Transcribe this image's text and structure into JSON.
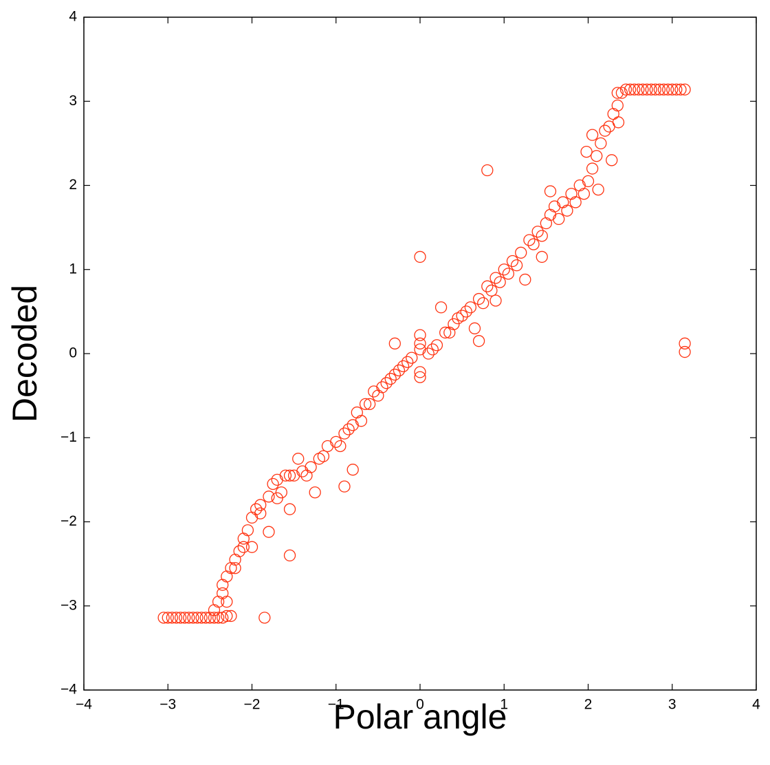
{
  "chart_data": {
    "type": "scatter",
    "x_label": "Polar angle",
    "y_label": "Decoded",
    "xlim": [
      -4,
      4
    ],
    "ylim": [
      -4,
      4
    ],
    "xticks": [
      {
        "value": -4,
        "label": "−4"
      },
      {
        "value": -3,
        "label": "−3"
      },
      {
        "value": -2,
        "label": "−2"
      },
      {
        "value": -1,
        "label": "−1"
      },
      0,
      1,
      2,
      3,
      4
    ],
    "yticks": [
      {
        "value": -4,
        "label": "−4"
      },
      {
        "value": -3,
        "label": "−3"
      },
      {
        "value": -2,
        "label": "−2"
      },
      {
        "value": -1,
        "label": "−1"
      },
      0,
      1,
      2,
      3,
      4
    ],
    "marker": "open-circle",
    "color": "#ff3311",
    "x": [
      -3.05,
      -3.0,
      -2.95,
      -2.9,
      -2.85,
      -2.8,
      -2.75,
      -2.7,
      -2.65,
      -2.6,
      -2.55,
      -2.5,
      -2.45,
      -2.4,
      -2.35,
      -2.3,
      -2.25,
      -2.45,
      -2.4,
      -2.35,
      -2.35,
      -2.3,
      -2.25,
      -2.2,
      -2.15,
      -2.1,
      -2.05,
      -2.0,
      -1.95,
      -1.9,
      -1.8,
      -1.75,
      -1.7,
      -1.6,
      -1.5,
      -1.45,
      -1.4,
      -1.3,
      -1.2,
      -1.1,
      -1.0,
      -0.9,
      -0.8,
      -0.75,
      -0.7,
      -0.6,
      -0.5,
      -0.45,
      -0.4,
      -0.3,
      -0.2,
      -0.1,
      -2.3,
      -2.2,
      -2.1,
      -2.0,
      -1.9,
      -1.7,
      -1.55,
      -1.35,
      -1.15,
      -0.95,
      -0.85,
      -0.65,
      -0.55,
      -0.35,
      -0.25,
      -0.15,
      0,
      0,
      0,
      0,
      0,
      0,
      0.1,
      0.2,
      0.3,
      0.4,
      0.5,
      0.6,
      0.7,
      0.8,
      0.9,
      1.0,
      1.1,
      1.2,
      1.3,
      1.4,
      1.5,
      1.55,
      1.6,
      1.7,
      1.8,
      1.9,
      2.0,
      2.05,
      2.1,
      2.15,
      2.2,
      2.25,
      2.3,
      2.35,
      2.4,
      0.15,
      0.35,
      0.45,
      0.55,
      0.75,
      0.85,
      0.95,
      1.05,
      1.15,
      1.35,
      1.45,
      1.65,
      1.75,
      1.85,
      1.95,
      2.12,
      2.28,
      2.36,
      2.45,
      2.5,
      2.55,
      2.6,
      2.65,
      2.7,
      2.75,
      2.8,
      2.85,
      2.9,
      2.95,
      3.0,
      3.05,
      3.1,
      3.15,
      2.35,
      -1.85,
      -1.55,
      -1.55,
      -1.8,
      -0.9,
      -0.8,
      -1.65,
      -1.25,
      -0.3,
      0.65,
      0.7,
      0.25,
      0.8,
      0.9,
      1.25,
      1.45,
      1.55,
      1.98,
      2.05,
      3.15,
      3.15
    ],
    "y": [
      -3.14,
      -3.14,
      -3.14,
      -3.14,
      -3.14,
      -3.14,
      -3.14,
      -3.14,
      -3.14,
      -3.14,
      -3.14,
      -3.14,
      -3.14,
      -3.14,
      -3.14,
      -3.12,
      -3.12,
      -3.05,
      -2.95,
      -2.85,
      -2.75,
      -2.65,
      -2.55,
      -2.45,
      -2.35,
      -2.2,
      -2.1,
      -1.95,
      -1.85,
      -1.8,
      -1.7,
      -1.55,
      -1.5,
      -1.45,
      -1.45,
      -1.25,
      -1.4,
      -1.35,
      -1.25,
      -1.1,
      -1.05,
      -0.95,
      -0.85,
      -0.7,
      -0.8,
      -0.6,
      -0.5,
      -0.4,
      -0.35,
      -0.25,
      -0.15,
      -0.05,
      -2.95,
      -2.55,
      -2.3,
      -2.3,
      -1.9,
      -1.72,
      -1.45,
      -1.45,
      -1.22,
      -1.1,
      -0.9,
      -0.6,
      -0.45,
      -0.3,
      -0.2,
      -0.1,
      0.05,
      0.22,
      0.12,
      -0.28,
      -0.22,
      1.15,
      0,
      0.1,
      0.25,
      0.35,
      0.45,
      0.55,
      0.65,
      0.8,
      0.9,
      1.0,
      1.1,
      1.2,
      1.35,
      1.45,
      1.55,
      1.65,
      1.75,
      1.8,
      1.9,
      2.0,
      2.05,
      2.2,
      2.35,
      2.5,
      2.65,
      2.7,
      2.85,
      2.95,
      3.1,
      0.05,
      0.25,
      0.42,
      0.5,
      0.6,
      0.75,
      0.85,
      0.95,
      1.05,
      1.3,
      1.4,
      1.6,
      1.7,
      1.8,
      1.9,
      1.95,
      2.3,
      2.75,
      3.14,
      3.14,
      3.14,
      3.14,
      3.14,
      3.14,
      3.14,
      3.14,
      3.14,
      3.14,
      3.14,
      3.14,
      3.14,
      3.14,
      3.14,
      3.1,
      -3.14,
      -2.4,
      -1.85,
      -2.12,
      -1.58,
      -1.38,
      -1.65,
      -1.65,
      0.12,
      0.3,
      0.15,
      0.55,
      2.18,
      0.63,
      0.88,
      1.15,
      1.93,
      2.4,
      2.6,
      0.12,
      0.02
    ]
  }
}
